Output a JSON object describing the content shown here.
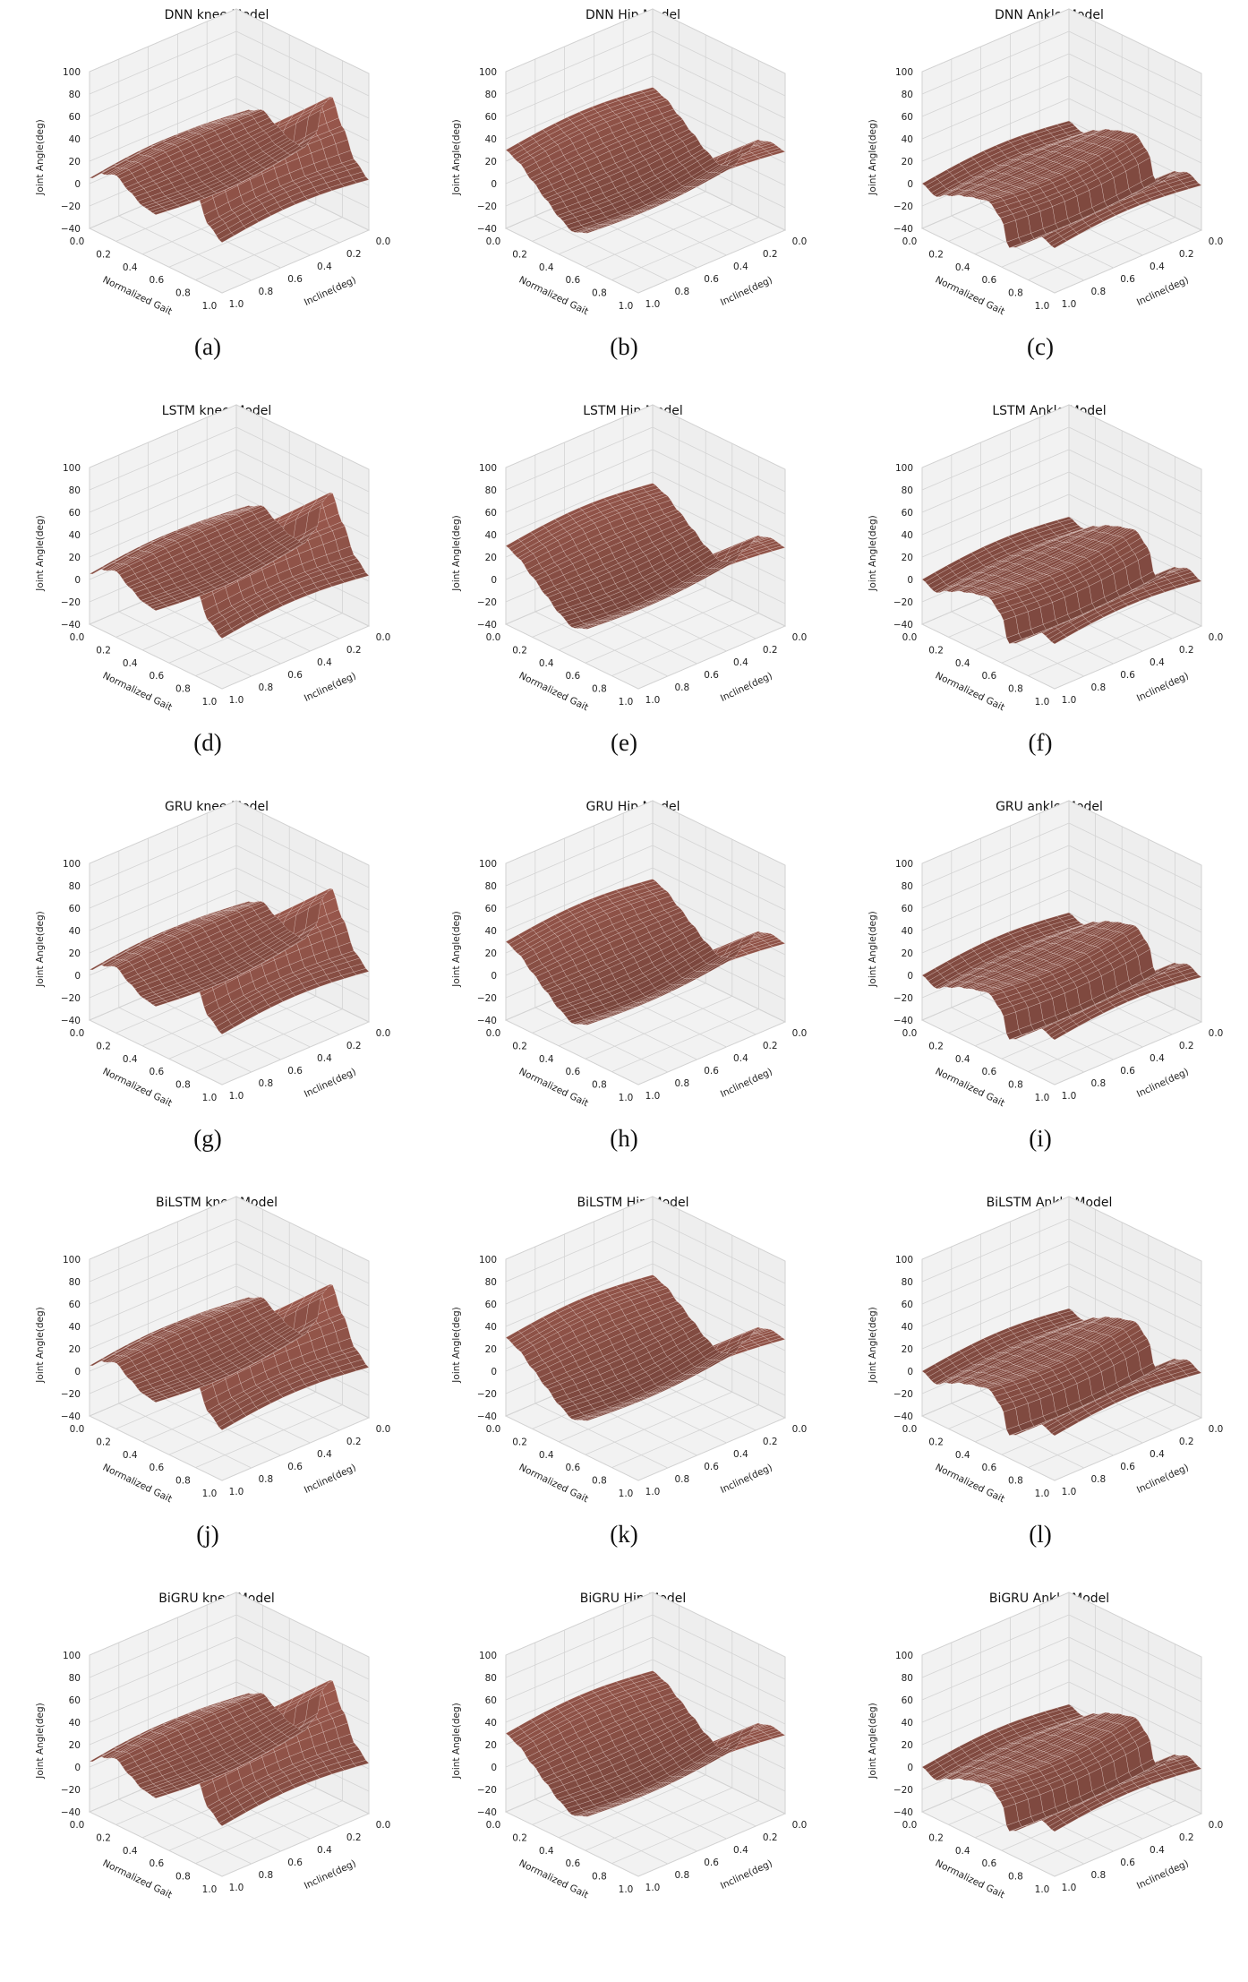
{
  "figure": {
    "surface_color": "#9c5a4e",
    "wire_color": "#f4e4e0",
    "pane_color": "#f2f2f2",
    "grid_color": "#d4d4d4"
  },
  "chart_data": [
    {
      "type": "surface3d",
      "title": "DNN knee Model",
      "caption": "(a)",
      "joint": "knee",
      "xlabel": "Normalized Gait",
      "ylabel": "Incline(deg)",
      "zlabel": "Joint Angle(deg)",
      "xlim": [
        0,
        1
      ],
      "ylim": [
        0,
        1
      ],
      "zlim": [
        -40,
        100
      ],
      "xticks": [
        "0.0",
        "0.2",
        "0.4",
        "0.6",
        "0.8",
        "1.0"
      ],
      "yticks": [
        "0.0",
        "0.2",
        "0.4",
        "0.6",
        "0.8",
        "1.0"
      ],
      "zticks": [
        "100",
        "80",
        "60",
        "40",
        "20",
        "0",
        "−20",
        "−40"
      ],
      "profile": {
        "gait": [
          0.0,
          0.1,
          0.2,
          0.3,
          0.4,
          0.5,
          0.6,
          0.65,
          0.72,
          0.8,
          0.9,
          1.0
        ],
        "angle": [
          5,
          15,
          20,
          12,
          5,
          3,
          20,
          50,
          62,
          40,
          15,
          5
        ]
      }
    },
    {
      "type": "surface3d",
      "title": "DNN Hip Model",
      "caption": "(b)",
      "joint": "hip",
      "xlabel": "Normalized Gait",
      "ylabel": "Incline(deg)",
      "zlabel": "Joint Angle(deg)",
      "xlim": [
        0,
        1
      ],
      "ylim": [
        0,
        1
      ],
      "zlim": [
        -40,
        100
      ],
      "xticks": [
        "0.0",
        "0.2",
        "0.4",
        "0.6",
        "0.8",
        "1.0"
      ],
      "yticks": [
        "0.0",
        "0.2",
        "0.4",
        "0.6",
        "0.8",
        "1.0"
      ],
      "zticks": [
        "100",
        "80",
        "60",
        "40",
        "20",
        "0",
        "−20",
        "−40"
      ],
      "profile": {
        "gait": [
          0.0,
          0.1,
          0.2,
          0.3,
          0.4,
          0.5,
          0.6,
          0.7,
          0.8,
          0.9,
          1.0
        ],
        "angle": [
          30,
          25,
          15,
          5,
          -5,
          -12,
          -8,
          10,
          28,
          32,
          30
        ]
      }
    },
    {
      "type": "surface3d",
      "title": "DNN Ankle Model",
      "caption": "(c)",
      "joint": "ankle",
      "xlabel": "Normalized Gait",
      "ylabel": "Incline(deg)",
      "zlabel": "Joint Angle(deg)",
      "xlim": [
        0,
        1
      ],
      "ylim": [
        0,
        1
      ],
      "zlim": [
        -40,
        100
      ],
      "xticks": [
        "0.0",
        "0.2",
        "0.4",
        "0.6",
        "0.8",
        "1.0"
      ],
      "yticks": [
        "0.0",
        "0.2",
        "0.4",
        "0.6",
        "0.8",
        "1.0"
      ],
      "zticks": [
        "100",
        "80",
        "60",
        "40",
        "20",
        "0",
        "−20",
        "−40"
      ],
      "profile": {
        "gait": [
          0.0,
          0.1,
          0.2,
          0.3,
          0.4,
          0.5,
          0.6,
          0.65,
          0.7,
          0.8,
          0.9,
          1.0
        ],
        "angle": [
          0,
          -5,
          2,
          8,
          12,
          15,
          5,
          -18,
          -15,
          0,
          5,
          0
        ]
      }
    },
    {
      "type": "surface3d",
      "title": "LSTM knee Model",
      "caption": "(d)",
      "joint": "knee",
      "xlabel": "Normalized Gait",
      "ylabel": "Incline(deg)",
      "zlabel": "Joint Angle(deg)",
      "xlim": [
        0,
        1
      ],
      "ylim": [
        0,
        1
      ],
      "zlim": [
        -40,
        100
      ],
      "xticks": [
        "0.0",
        "0.2",
        "0.4",
        "0.6",
        "0.8",
        "1.0"
      ],
      "yticks": [
        "0.0",
        "0.2",
        "0.4",
        "0.6",
        "0.8",
        "1.0"
      ],
      "zticks": [
        "100",
        "80",
        "60",
        "40",
        "20",
        "0",
        "−20",
        "−40"
      ],
      "profile": {
        "gait": [
          0.0,
          0.1,
          0.2,
          0.3,
          0.4,
          0.5,
          0.6,
          0.65,
          0.72,
          0.8,
          0.9,
          1.0
        ],
        "angle": [
          5,
          15,
          20,
          12,
          5,
          3,
          20,
          50,
          62,
          40,
          15,
          5
        ]
      }
    },
    {
      "type": "surface3d",
      "title": "LSTM Hip Model",
      "caption": "(e)",
      "joint": "hip",
      "xlabel": "Normalized Gait",
      "ylabel": "Incline(deg)",
      "zlabel": "Joint Angle(deg)",
      "xlim": [
        0,
        1
      ],
      "ylim": [
        0,
        1
      ],
      "zlim": [
        -40,
        100
      ],
      "xticks": [
        "0.0",
        "0.2",
        "0.4",
        "0.6",
        "0.8",
        "1.0"
      ],
      "yticks": [
        "0.0",
        "0.2",
        "0.4",
        "0.6",
        "0.8",
        "1.0"
      ],
      "zticks": [
        "100",
        "80",
        "60",
        "40",
        "20",
        "0",
        "−20",
        "−40"
      ],
      "profile": {
        "gait": [
          0.0,
          0.1,
          0.2,
          0.3,
          0.4,
          0.5,
          0.6,
          0.7,
          0.8,
          0.9,
          1.0
        ],
        "angle": [
          30,
          25,
          15,
          5,
          -5,
          -12,
          -8,
          10,
          28,
          32,
          30
        ]
      }
    },
    {
      "type": "surface3d",
      "title": "LSTM Ankle Model",
      "caption": "(f)",
      "joint": "ankle",
      "xlabel": "Normalized Gait",
      "ylabel": "Incline(deg)",
      "zlabel": "Joint Angle(deg)",
      "xlim": [
        0,
        1
      ],
      "ylim": [
        0,
        1
      ],
      "zlim": [
        -40,
        100
      ],
      "xticks": [
        "0.0",
        "0.2",
        "0.4",
        "0.6",
        "0.8",
        "1.0"
      ],
      "yticks": [
        "0.0",
        "0.2",
        "0.4",
        "0.6",
        "0.8",
        "1.0"
      ],
      "zticks": [
        "100",
        "80",
        "60",
        "40",
        "20",
        "0",
        "−20",
        "−40"
      ],
      "profile": {
        "gait": [
          0.0,
          0.1,
          0.2,
          0.3,
          0.4,
          0.5,
          0.6,
          0.65,
          0.7,
          0.8,
          0.9,
          1.0
        ],
        "angle": [
          0,
          -5,
          2,
          8,
          12,
          15,
          5,
          -18,
          -15,
          0,
          5,
          0
        ]
      }
    },
    {
      "type": "surface3d",
      "title": "GRU knee Model",
      "caption": "(g)",
      "joint": "knee",
      "xlabel": "Normalized Gait",
      "ylabel": "Incline(deg)",
      "zlabel": "Joint Angle(deg)",
      "xlim": [
        0,
        1
      ],
      "ylim": [
        0,
        1
      ],
      "zlim": [
        -40,
        100
      ],
      "xticks": [
        "0.0",
        "0.2",
        "0.4",
        "0.6",
        "0.8",
        "1.0"
      ],
      "yticks": [
        "0.0",
        "0.2",
        "0.4",
        "0.6",
        "0.8",
        "1.0"
      ],
      "zticks": [
        "100",
        "80",
        "60",
        "40",
        "20",
        "0",
        "−20",
        "−40"
      ],
      "profile": {
        "gait": [
          0.0,
          0.1,
          0.2,
          0.3,
          0.4,
          0.5,
          0.6,
          0.65,
          0.72,
          0.8,
          0.9,
          1.0
        ],
        "angle": [
          5,
          15,
          20,
          12,
          5,
          3,
          20,
          50,
          62,
          40,
          15,
          5
        ]
      }
    },
    {
      "type": "surface3d",
      "title": "GRU Hip Model",
      "caption": "(h)",
      "joint": "hip",
      "xlabel": "Normalized Gait",
      "ylabel": "Incline(deg)",
      "zlabel": "Joint Angle(deg)",
      "xlim": [
        0,
        1
      ],
      "ylim": [
        0,
        1
      ],
      "zlim": [
        -40,
        100
      ],
      "xticks": [
        "0.0",
        "0.2",
        "0.4",
        "0.6",
        "0.8",
        "1.0"
      ],
      "yticks": [
        "0.0",
        "0.2",
        "0.4",
        "0.6",
        "0.8",
        "1.0"
      ],
      "zticks": [
        "100",
        "80",
        "60",
        "40",
        "20",
        "0",
        "−20",
        "−40"
      ],
      "profile": {
        "gait": [
          0.0,
          0.1,
          0.2,
          0.3,
          0.4,
          0.5,
          0.6,
          0.7,
          0.8,
          0.9,
          1.0
        ],
        "angle": [
          30,
          25,
          15,
          5,
          -5,
          -12,
          -8,
          10,
          28,
          32,
          30
        ]
      }
    },
    {
      "type": "surface3d",
      "title": "GRU ankle Model",
      "caption": "(i)",
      "joint": "ankle",
      "xlabel": "Normalized Gait",
      "ylabel": "Incline(deg)",
      "zlabel": "Joint Angle(deg)",
      "xlim": [
        0,
        1
      ],
      "ylim": [
        0,
        1
      ],
      "zlim": [
        -40,
        100
      ],
      "xticks": [
        "0.0",
        "0.2",
        "0.4",
        "0.6",
        "0.8",
        "1.0"
      ],
      "yticks": [
        "0.0",
        "0.2",
        "0.4",
        "0.6",
        "0.8",
        "1.0"
      ],
      "zticks": [
        "100",
        "80",
        "60",
        "40",
        "20",
        "0",
        "−20",
        "−40"
      ],
      "profile": {
        "gait": [
          0.0,
          0.1,
          0.2,
          0.3,
          0.4,
          0.5,
          0.6,
          0.65,
          0.7,
          0.8,
          0.9,
          1.0
        ],
        "angle": [
          0,
          -5,
          2,
          8,
          12,
          15,
          5,
          -18,
          -15,
          0,
          5,
          0
        ]
      }
    },
    {
      "type": "surface3d",
      "title": "BiLSTM knee Model",
      "caption": "(j)",
      "joint": "knee",
      "xlabel": "Normalized Gait",
      "ylabel": "Incline(deg)",
      "zlabel": "Joint Angle(deg)",
      "xlim": [
        0,
        1
      ],
      "ylim": [
        0,
        1
      ],
      "zlim": [
        -40,
        100
      ],
      "xticks": [
        "0.0",
        "0.2",
        "0.4",
        "0.6",
        "0.8",
        "1.0"
      ],
      "yticks": [
        "0.0",
        "0.2",
        "0.4",
        "0.6",
        "0.8",
        "1.0"
      ],
      "zticks": [
        "100",
        "80",
        "60",
        "40",
        "20",
        "0",
        "−20",
        "−40"
      ],
      "profile": {
        "gait": [
          0.0,
          0.1,
          0.2,
          0.3,
          0.4,
          0.5,
          0.6,
          0.65,
          0.72,
          0.8,
          0.9,
          1.0
        ],
        "angle": [
          5,
          15,
          20,
          12,
          5,
          3,
          20,
          50,
          62,
          40,
          15,
          5
        ]
      }
    },
    {
      "type": "surface3d",
      "title": "BiLSTM Hip Model",
      "caption": "(k)",
      "joint": "hip",
      "xlabel": "Normalized Gait",
      "ylabel": "Incline(deg)",
      "zlabel": "Joint Angle(deg)",
      "xlim": [
        0,
        1
      ],
      "ylim": [
        0,
        1
      ],
      "zlim": [
        -40,
        100
      ],
      "xticks": [
        "0.0",
        "0.2",
        "0.4",
        "0.6",
        "0.8",
        "1.0"
      ],
      "yticks": [
        "0.0",
        "0.2",
        "0.4",
        "0.6",
        "0.8",
        "1.0"
      ],
      "zticks": [
        "100",
        "80",
        "60",
        "40",
        "20",
        "0",
        "−20",
        "−40"
      ],
      "profile": {
        "gait": [
          0.0,
          0.1,
          0.2,
          0.3,
          0.4,
          0.5,
          0.6,
          0.7,
          0.8,
          0.9,
          1.0
        ],
        "angle": [
          30,
          25,
          15,
          5,
          -5,
          -12,
          -8,
          10,
          28,
          32,
          30
        ]
      }
    },
    {
      "type": "surface3d",
      "title": "BiLSTM Ankle Model",
      "caption": "(l)",
      "joint": "ankle",
      "xlabel": "Normalized Gait",
      "ylabel": "Incline(deg)",
      "zlabel": "Joint Angle(deg)",
      "xlim": [
        0,
        1
      ],
      "ylim": [
        0,
        1
      ],
      "zlim": [
        -40,
        100
      ],
      "xticks": [
        "0.0",
        "0.2",
        "0.4",
        "0.6",
        "0.8",
        "1.0"
      ],
      "yticks": [
        "0.0",
        "0.2",
        "0.4",
        "0.6",
        "0.8",
        "1.0"
      ],
      "zticks": [
        "100",
        "80",
        "60",
        "40",
        "20",
        "0",
        "−20",
        "−40"
      ],
      "profile": {
        "gait": [
          0.0,
          0.1,
          0.2,
          0.3,
          0.4,
          0.5,
          0.6,
          0.65,
          0.7,
          0.8,
          0.9,
          1.0
        ],
        "angle": [
          0,
          -5,
          2,
          8,
          12,
          15,
          5,
          -18,
          -15,
          0,
          5,
          0
        ]
      }
    },
    {
      "type": "surface3d",
      "title": "BiGRU knee Model",
      "caption": "",
      "joint": "knee",
      "xlabel": "Normalized Gait",
      "ylabel": "Incline(deg)",
      "zlabel": "Joint Angle(deg)",
      "xlim": [
        0,
        1
      ],
      "ylim": [
        0,
        1
      ],
      "zlim": [
        -40,
        100
      ],
      "xticks": [
        "0.0",
        "0.2",
        "0.4",
        "0.6",
        "0.8",
        "1.0"
      ],
      "yticks": [
        "0.0",
        "0.2",
        "0.4",
        "0.6",
        "0.8",
        "1.0"
      ],
      "zticks": [
        "100",
        "80",
        "60",
        "40",
        "20",
        "0",
        "−20",
        "−40"
      ],
      "profile": {
        "gait": [
          0.0,
          0.1,
          0.2,
          0.3,
          0.4,
          0.5,
          0.6,
          0.65,
          0.72,
          0.8,
          0.9,
          1.0
        ],
        "angle": [
          5,
          15,
          20,
          12,
          5,
          3,
          20,
          50,
          62,
          40,
          15,
          5
        ]
      }
    },
    {
      "type": "surface3d",
      "title": "BiGRU Hip Model",
      "caption": "",
      "joint": "hip",
      "xlabel": "Normalized Gait",
      "ylabel": "Incline(deg)",
      "zlabel": "Joint Angle(deg)",
      "xlim": [
        0,
        1
      ],
      "ylim": [
        0,
        1
      ],
      "zlim": [
        -40,
        100
      ],
      "xticks": [
        "0.0",
        "0.2",
        "0.4",
        "0.6",
        "0.8",
        "1.0"
      ],
      "yticks": [
        "0.0",
        "0.2",
        "0.4",
        "0.6",
        "0.8",
        "1.0"
      ],
      "zticks": [
        "100",
        "80",
        "60",
        "40",
        "20",
        "0",
        "−20",
        "−40"
      ],
      "profile": {
        "gait": [
          0.0,
          0.1,
          0.2,
          0.3,
          0.4,
          0.5,
          0.6,
          0.7,
          0.8,
          0.9,
          1.0
        ],
        "angle": [
          30,
          25,
          15,
          5,
          -5,
          -12,
          -8,
          10,
          28,
          32,
          30
        ]
      }
    },
    {
      "type": "surface3d",
      "title": "BiGRU Ankle Model",
      "caption": "",
      "joint": "ankle",
      "xlabel": "Normalized Gait",
      "ylabel": "Incline(deg)",
      "zlabel": "Joint Angle(deg)",
      "xlim": [
        0,
        1
      ],
      "ylim": [
        0,
        1
      ],
      "zlim": [
        -40,
        100
      ],
      "xticks": [
        "0.0",
        "0.2",
        "0.4",
        "0.6",
        "0.8",
        "1.0"
      ],
      "yticks": [
        "0.0",
        "0.2",
        "0.4",
        "0.6",
        "0.8",
        "1.0"
      ],
      "zticks": [
        "100",
        "80",
        "60",
        "40",
        "20",
        "0",
        "−20",
        "−40"
      ],
      "profile": {
        "gait": [
          0.0,
          0.1,
          0.2,
          0.3,
          0.4,
          0.5,
          0.6,
          0.65,
          0.7,
          0.8,
          0.9,
          1.0
        ],
        "angle": [
          0,
          -5,
          2,
          8,
          12,
          15,
          5,
          -18,
          -15,
          0,
          5,
          0
        ]
      }
    }
  ]
}
